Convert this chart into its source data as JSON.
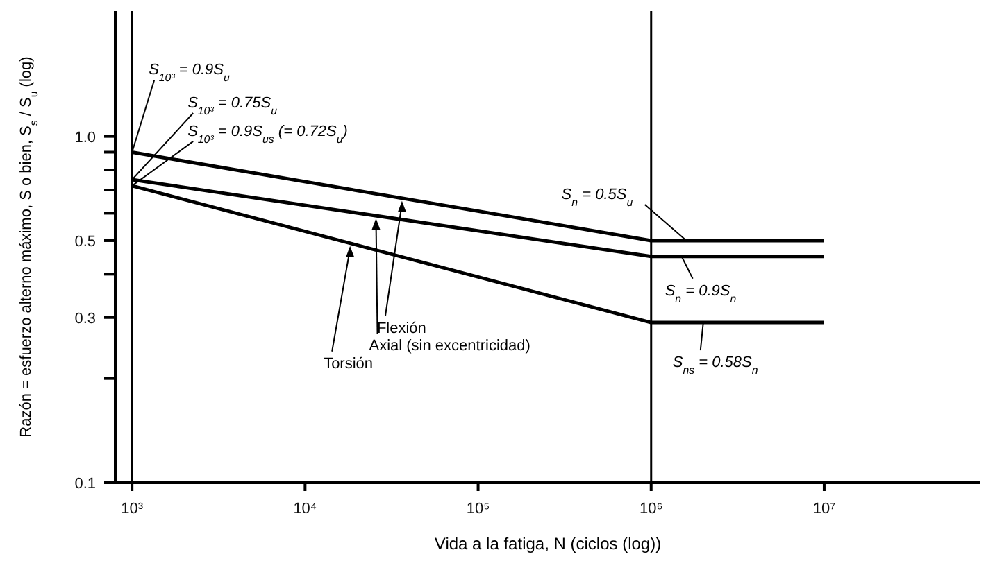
{
  "chart_data": {
    "type": "line",
    "xlabel": "Vida a la fatiga, N (ciclos (log))",
    "ylabel": "Razón = esfuerzo alterno máximo, S o bien, S$_{s}$ / S$_{u}$  (log)",
    "log": "xy",
    "xlim": [
      800,
      80000000
    ],
    "ylim": [
      0.1,
      2.3
    ],
    "xticks": [
      {
        "value": 1000,
        "label": "10³"
      },
      {
        "value": 10000,
        "label": "10⁴"
      },
      {
        "value": 100000,
        "label": "10⁵"
      },
      {
        "value": 1000000,
        "label": "10⁶"
      },
      {
        "value": 10000000,
        "label": "10⁷"
      }
    ],
    "yticks": [
      0.1,
      {
        "value": 0.2,
        "label": null
      },
      0.3,
      {
        "value": 0.4,
        "label": null
      },
      0.5,
      {
        "value": 0.6,
        "label": null
      },
      {
        "value": 0.7,
        "label": null
      },
      {
        "value": 0.8,
        "label": null
      },
      {
        "value": 0.9,
        "label": null
      },
      {
        "value": 1,
        "label": "1.0"
      }
    ],
    "marker": "none",
    "line_style": "solid",
    "series": [
      {
        "name": "Flexión",
        "color": "#000000",
        "x": [
          1000,
          1000000,
          10000000
        ],
        "values": [
          0.9,
          0.5,
          0.5
        ]
      },
      {
        "name": "Axial (sin excentricidad)",
        "color": "#000000",
        "x": [
          1000,
          1000000,
          10000000
        ],
        "values": [
          0.75,
          0.45,
          0.45
        ]
      },
      {
        "name": "Torsión",
        "color": "#000000",
        "x": [
          1000,
          1000000,
          10000000
        ],
        "values": [
          0.72,
          0.29,
          0.29
        ]
      }
    ],
    "ref_lines": [
      {
        "axis": "x",
        "value": 1000,
        "color": "#000000"
      },
      {
        "axis": "x",
        "value": 1000000,
        "color": "#000000"
      }
    ],
    "annotations": [
      {
        "text": "S$_{10³}$ = 0.9S$_{u}$",
        "x": 1000,
        "y": 0.9
      },
      {
        "text": "S$_{10³}$ = 0.75S$_{u}$",
        "x": 1000,
        "y": 0.75
      },
      {
        "text": "S$_{10³}$ = 0.9S$_{us}$ (= 0.72S$_{u}$)",
        "x": 1000,
        "y": 0.72
      },
      {
        "text": "S$_{n}$ = 0.5S$_{u}$",
        "x": 1600000,
        "y": 0.5
      },
      {
        "text": "S$_{n}$ = 0.9S$_{n}$",
        "x": 1500000,
        "y": 0.45
      },
      {
        "text": "S$_{ns}$ = 0.58S$_{n}$",
        "x": 2000000,
        "y": 0.29
      }
    ]
  }
}
